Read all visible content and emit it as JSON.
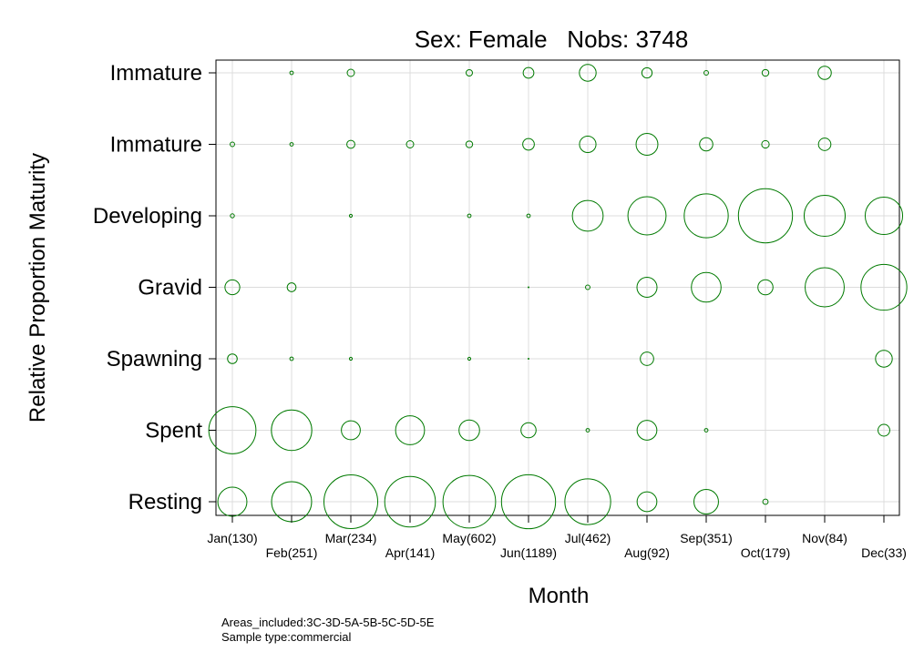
{
  "chart_data": {
    "type": "bubble",
    "title": "Sex: Female   Nobs: 3748",
    "xlabel": "Month",
    "ylabel": "Relative Proportion Maturity",
    "months": [
      "Jan(130)",
      "Feb(251)",
      "Mar(234)",
      "Apr(141)",
      "May(602)",
      "Jun(1189)",
      "Jul(462)",
      "Aug(92)",
      "Sep(351)",
      "Oct(179)",
      "Nov(84)",
      "Dec(33)"
    ],
    "categories": [
      "Immature",
      "Immature",
      "Developing",
      "Gravid",
      "Spawning",
      "Spent",
      "Resting"
    ],
    "grid": true,
    "bubble_color": "#007a00",
    "series": [
      {
        "values": [
          0,
          0.3,
          1.3,
          0,
          1,
          2.8,
          6.9,
          2.6,
          0.5,
          1.1,
          4.3,
          0
        ]
      },
      {
        "values": [
          0.5,
          0.3,
          1.6,
          1.3,
          1.1,
          3.3,
          6.7,
          11.7,
          4.3,
          1.4,
          3.8,
          0
        ]
      },
      {
        "values": [
          0.4,
          0,
          0.2,
          0,
          0.3,
          0.3,
          23.3,
          35.8,
          47.6,
          72,
          41.4,
          34.5
        ]
      },
      {
        "values": [
          5.4,
          1.9,
          0,
          0,
          0,
          0.02,
          0.5,
          9.9,
          21.7,
          5.6,
          37.6,
          51.7
        ]
      },
      {
        "values": [
          2.3,
          0.3,
          0.2,
          0,
          0.2,
          0.02,
          0,
          4.4,
          0,
          0,
          0,
          6.9
        ]
      },
      {
        "values": [
          54.6,
          40.2,
          8.8,
          20.6,
          10.4,
          5.6,
          0.3,
          9.6,
          0.3,
          0,
          0,
          3.4
        ]
      },
      {
        "values": [
          20.8,
          39.4,
          71.1,
          63.1,
          68.1,
          71.9,
          51.6,
          9.6,
          14.8,
          0.7,
          0,
          0
        ]
      }
    ]
  },
  "footer": {
    "areas": "Areas_included:3C-3D-5A-5B-5C-5D-5E",
    "sample": "Sample type:commercial"
  }
}
